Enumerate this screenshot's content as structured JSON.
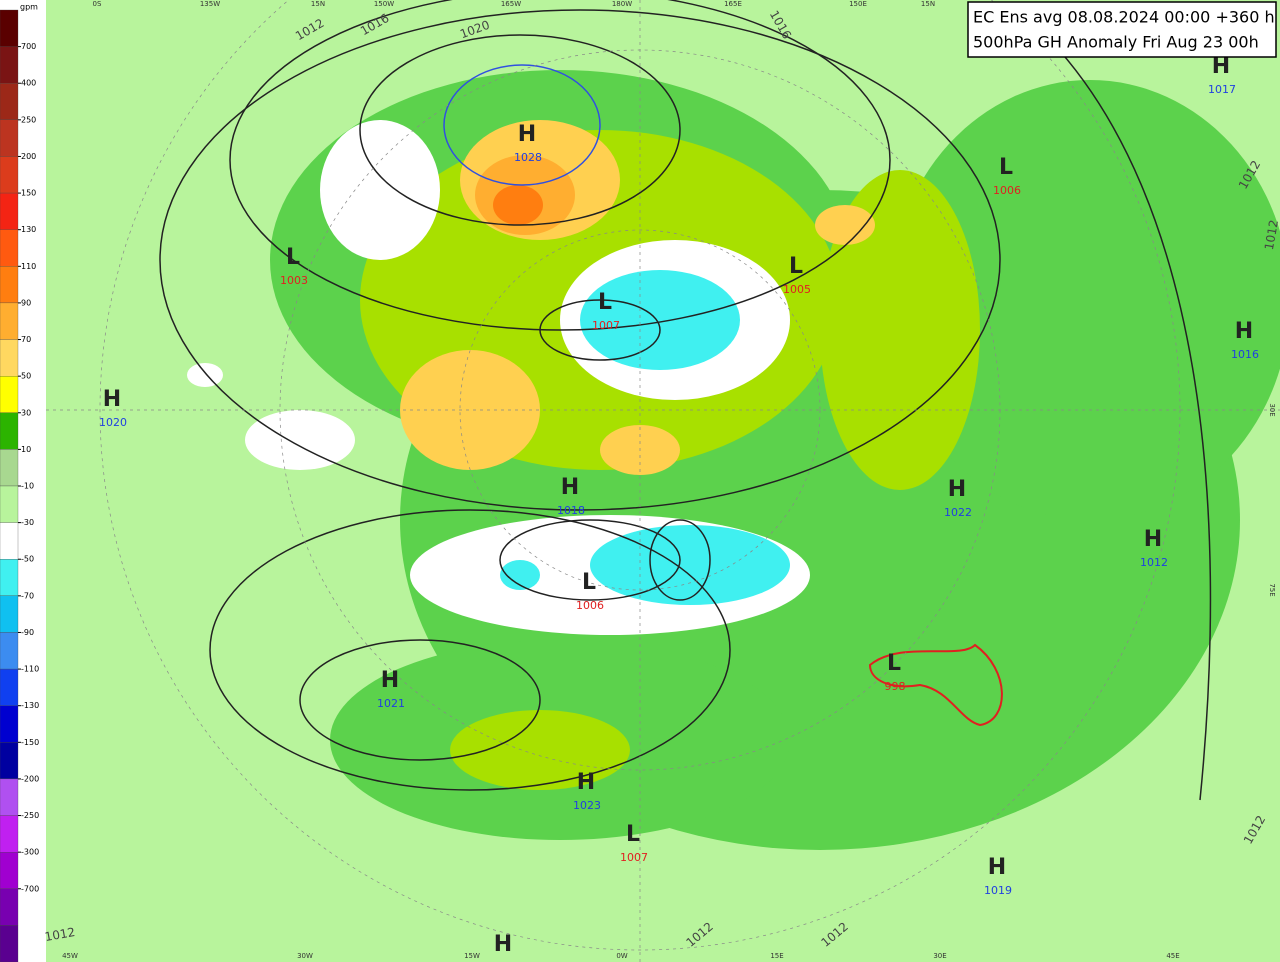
{
  "title": {
    "line1": "EC Ens avg 08.08.2024 00:00 +360 h",
    "line2": "500hPa GH Anomaly Fri Aug 23 00h"
  },
  "scale": {
    "unit": "gpm",
    "levels": [
      700,
      400,
      250,
      200,
      150,
      130,
      110,
      90,
      70,
      50,
      30,
      10,
      -10,
      -30,
      -50,
      -70,
      -90,
      -110,
      -130,
      -150,
      -200,
      -250,
      -300,
      -700
    ],
    "colors": [
      "#5a0000",
      "#7a1414",
      "#9c2818",
      "#bc3420",
      "#dc3c1c",
      "#f42414",
      "#ff5a10",
      "#ff7e10",
      "#ffae30",
      "#ffd860",
      "#ffff00",
      "#2cb400",
      "#a8d890",
      "#b8f49c",
      "#ffffff",
      "#40f0f0",
      "#10c0f0",
      "#3c8cf0",
      "#1040f0",
      "#0000d0",
      "#0000a0",
      "#b050f0",
      "#c020f0",
      "#a000d0",
      "#7800b0",
      "#5a0090"
    ]
  },
  "centers": [
    {
      "letter": "H",
      "value": 1028
    },
    {
      "letter": "L",
      "value": 1003
    },
    {
      "letter": "L",
      "value": 1007
    },
    {
      "letter": "L",
      "value": 1005
    },
    {
      "letter": "L",
      "value": 1006
    },
    {
      "letter": "H",
      "value": 1017
    },
    {
      "letter": "H",
      "value": 1016
    },
    {
      "letter": "H",
      "value": 1020
    },
    {
      "letter": "H",
      "value": 1018
    },
    {
      "letter": "H",
      "value": 1022
    },
    {
      "letter": "H",
      "value": 1012
    },
    {
      "letter": "L",
      "value": 1006
    },
    {
      "letter": "L",
      "value": 998
    },
    {
      "letter": "H",
      "value": 1021
    },
    {
      "letter": "H",
      "value": 1023
    },
    {
      "letter": "L",
      "value": 1007
    },
    {
      "letter": "H",
      "value": 1019
    },
    {
      "letter": "H"
    }
  ],
  "isobar_labels": [
    "1012",
    "1016",
    "1020",
    "1016",
    "1012",
    "1012",
    "1012",
    "1012",
    "1012",
    "1012"
  ],
  "lon_labels": [
    "0S",
    "135W",
    "15N",
    "150W",
    "165W",
    "180W",
    "165E",
    "150E",
    "15N",
    "45W",
    "30W",
    "15W",
    "0W",
    "15E",
    "30E",
    "45E",
    "30E",
    "75E"
  ]
}
